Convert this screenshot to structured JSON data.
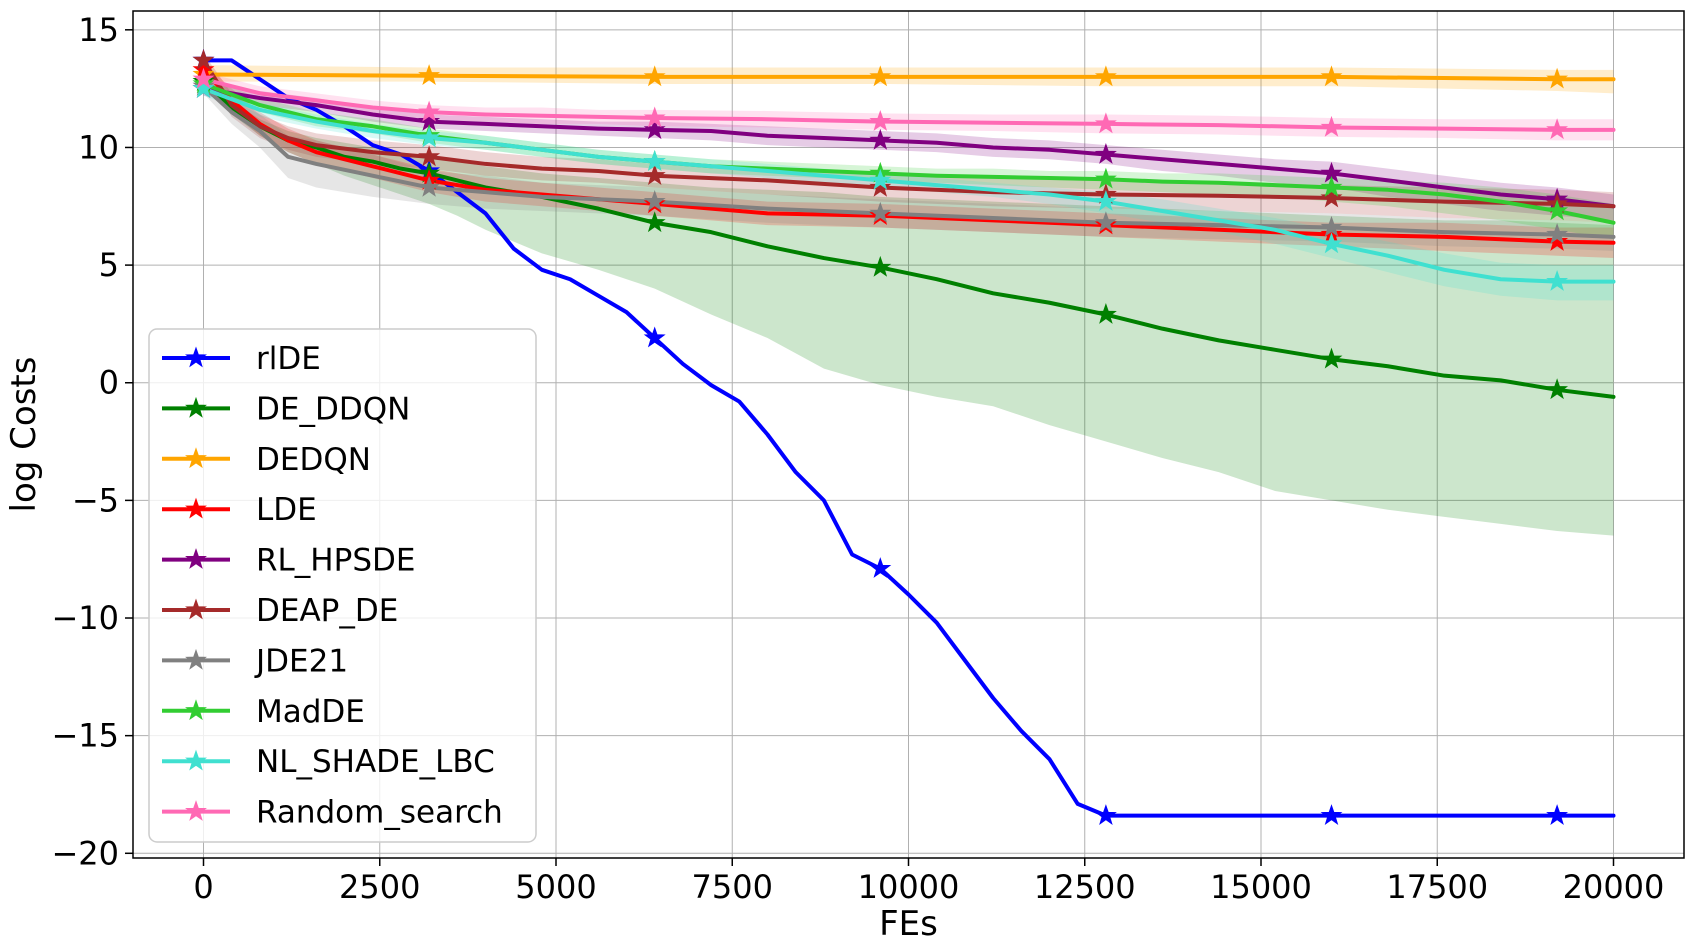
{
  "chart_data": {
    "type": "line",
    "title": "",
    "xlabel": "FEs",
    "ylabel": "log Costs",
    "xlim": [
      -1000,
      21000
    ],
    "ylim": [
      -20.2,
      15.8
    ],
    "x_ticks": [
      0,
      2500,
      5000,
      7500,
      10000,
      12500,
      15000,
      17500,
      20000
    ],
    "x_tick_labels": [
      "0",
      "2500",
      "5000",
      "7500",
      "10000",
      "12500",
      "15000",
      "17500",
      "20000"
    ],
    "y_ticks": [
      15,
      10,
      5,
      0,
      -5,
      -10,
      -15,
      -20
    ],
    "y_tick_labels": [
      "15",
      "10",
      "5",
      "0",
      "−5",
      "−10",
      "−15",
      "−20"
    ],
    "grid": true,
    "legend_position": "lower-left",
    "marker_x": [
      0,
      3200,
      6400,
      9600,
      12800,
      16000,
      19200
    ],
    "series": [
      {
        "name": "rlDE",
        "color": "#0000ff",
        "x": [
          0,
          400,
          800,
          1200,
          1600,
          2000,
          2400,
          2800,
          3200,
          3600,
          4000,
          4400,
          4800,
          5200,
          5600,
          6000,
          6400,
          6800,
          7200,
          7600,
          8000,
          8400,
          8800,
          9200,
          9600,
          10000,
          10400,
          10800,
          11200,
          11600,
          12000,
          12400,
          12800,
          16000,
          19200,
          20000
        ],
        "y": [
          13.7,
          13.7,
          12.9,
          12.1,
          11.6,
          10.9,
          10.1,
          9.7,
          9.0,
          8.1,
          7.2,
          5.7,
          4.8,
          4.4,
          3.7,
          3.0,
          1.9,
          0.8,
          -0.1,
          -0.8,
          -2.2,
          -3.8,
          -5.0,
          -7.3,
          -7.9,
          -9.0,
          -10.2,
          -11.8,
          -13.4,
          -14.8,
          -16.0,
          -17.9,
          -18.4,
          -18.4,
          -18.4,
          -18.4
        ]
      },
      {
        "name": "DE_DDQN",
        "color": "#008000",
        "x": [
          0,
          400,
          800,
          1200,
          1600,
          2000,
          2400,
          2800,
          3200,
          3600,
          4000,
          4800,
          5600,
          6400,
          7200,
          8000,
          8800,
          9600,
          10400,
          11200,
          12000,
          12800,
          13600,
          14400,
          15200,
          16000,
          16800,
          17600,
          18400,
          19200,
          20000
        ],
        "y": [
          12.8,
          11.7,
          10.9,
          10.3,
          10.0,
          9.6,
          9.4,
          9.1,
          8.9,
          8.6,
          8.3,
          7.9,
          7.4,
          6.8,
          6.4,
          5.8,
          5.3,
          4.9,
          4.4,
          3.8,
          3.4,
          2.9,
          2.3,
          1.8,
          1.4,
          1.0,
          0.7,
          0.3,
          0.1,
          -0.3,
          -0.6
        ],
        "lower": [
          12.5,
          11.4,
          10.5,
          9.8,
          9.3,
          8.8,
          8.4,
          8.0,
          7.6,
          7.1,
          6.5,
          5.5,
          4.8,
          4.0,
          2.9,
          1.9,
          0.6,
          -0.1,
          -0.6,
          -1.0,
          -1.8,
          -2.5,
          -3.2,
          -3.8,
          -4.6,
          -5.0,
          -5.4,
          -5.7,
          -6.0,
          -6.3,
          -6.5
        ],
        "upper": [
          13.0,
          12.0,
          11.2,
          10.7,
          10.4,
          10.2,
          10.0,
          9.8,
          9.6,
          9.4,
          9.2,
          8.9,
          8.7,
          8.5,
          8.3,
          8.2,
          8.1,
          7.9,
          7.8,
          7.7,
          7.6,
          7.5,
          7.4,
          7.3,
          7.2,
          7.1,
          7.0,
          6.9,
          6.9,
          6.8,
          6.7
        ]
      },
      {
        "name": "DEDQN",
        "color": "#ffa500",
        "x": [
          0,
          3200,
          6400,
          9600,
          12800,
          16000,
          19200,
          20000
        ],
        "y": [
          13.1,
          13.05,
          13.0,
          13.0,
          13.0,
          13.0,
          12.9,
          12.9
        ],
        "lower": [
          12.8,
          12.8,
          12.7,
          12.7,
          12.6,
          12.6,
          12.4,
          12.3
        ],
        "upper": [
          13.5,
          13.4,
          13.4,
          13.4,
          13.4,
          13.4,
          13.3,
          13.3
        ]
      },
      {
        "name": "LDE",
        "color": "#ff0000",
        "x": [
          0,
          400,
          800,
          1200,
          1600,
          2400,
          3200,
          4000,
          4800,
          5600,
          6400,
          7200,
          8000,
          9600,
          11200,
          12800,
          14400,
          16000,
          17600,
          19200,
          20000
        ],
        "y": [
          13.3,
          12.0,
          11.0,
          10.3,
          9.8,
          9.2,
          8.6,
          8.2,
          8.0,
          7.8,
          7.6,
          7.4,
          7.2,
          7.1,
          6.9,
          6.7,
          6.5,
          6.3,
          6.2,
          6.0,
          5.95
        ],
        "lower": [
          12.9,
          11.5,
          10.5,
          9.8,
          9.3,
          8.7,
          8.1,
          7.7,
          7.5,
          7.3,
          7.1,
          6.9,
          6.7,
          6.6,
          6.4,
          6.2,
          6.0,
          5.8,
          5.6,
          5.4,
          5.3
        ],
        "upper": [
          13.6,
          12.5,
          11.5,
          10.8,
          10.3,
          9.7,
          9.1,
          8.7,
          8.5,
          8.3,
          8.1,
          7.9,
          7.7,
          7.6,
          7.4,
          7.2,
          7.0,
          6.8,
          6.8,
          6.6,
          6.6
        ]
      },
      {
        "name": "RL_HPSDE",
        "color": "#800080",
        "x": [
          0,
          800,
          1600,
          2400,
          3200,
          4000,
          4800,
          5600,
          6400,
          7200,
          8000,
          8800,
          9600,
          10400,
          11200,
          12000,
          12800,
          13600,
          14400,
          15200,
          16000,
          16800,
          17600,
          18400,
          19200,
          20000
        ],
        "y": [
          12.5,
          12.1,
          11.8,
          11.4,
          11.1,
          11.0,
          10.9,
          10.8,
          10.75,
          10.7,
          10.5,
          10.4,
          10.3,
          10.2,
          10.0,
          9.9,
          9.7,
          9.5,
          9.3,
          9.1,
          8.9,
          8.6,
          8.3,
          8.0,
          7.8,
          7.5
        ],
        "lower": [
          12.2,
          11.8,
          11.5,
          11.1,
          10.8,
          10.7,
          10.6,
          10.5,
          10.4,
          10.3,
          10.1,
          10.0,
          9.9,
          9.8,
          9.6,
          9.5,
          9.3,
          9.0,
          8.8,
          8.5,
          8.3,
          7.9,
          7.6,
          7.3,
          7.1,
          6.9
        ],
        "upper": [
          12.8,
          12.4,
          12.1,
          11.7,
          11.4,
          11.3,
          11.2,
          11.1,
          11.1,
          11.0,
          10.9,
          10.8,
          10.7,
          10.6,
          10.4,
          10.3,
          10.1,
          9.9,
          9.7,
          9.5,
          9.4,
          9.1,
          8.8,
          8.5,
          8.3,
          8.0
        ]
      },
      {
        "name": "DEAP_DE",
        "color": "#a52a2a",
        "x": [
          0,
          400,
          800,
          1200,
          1600,
          2400,
          3200,
          4000,
          4800,
          5600,
          6400,
          8000,
          9600,
          11200,
          12800,
          14400,
          16000,
          17600,
          19200,
          20000
        ],
        "y": [
          13.7,
          11.8,
          10.9,
          10.4,
          10.1,
          9.8,
          9.6,
          9.3,
          9.1,
          9.0,
          8.8,
          8.6,
          8.3,
          8.1,
          8.0,
          7.95,
          7.85,
          7.7,
          7.6,
          7.5
        ],
        "lower": [
          13.3,
          11.3,
          10.4,
          9.9,
          9.6,
          9.3,
          9.1,
          8.8,
          8.6,
          8.5,
          8.3,
          8.0,
          7.7,
          7.5,
          7.4,
          7.3,
          7.2,
          7.0,
          6.9,
          6.8
        ],
        "upper": [
          14.0,
          12.3,
          11.4,
          10.9,
          10.6,
          10.3,
          10.1,
          9.8,
          9.6,
          9.5,
          9.3,
          9.1,
          8.9,
          8.7,
          8.6,
          8.5,
          8.4,
          8.3,
          8.2,
          8.1
        ]
      },
      {
        "name": "JDE21",
        "color": "#808080",
        "x": [
          0,
          400,
          800,
          1200,
          1600,
          2400,
          3200,
          4000,
          4800,
          5600,
          6400,
          8000,
          9600,
          11200,
          12800,
          14400,
          16000,
          17600,
          19200,
          20000
        ],
        "y": [
          12.6,
          11.5,
          10.7,
          9.6,
          9.3,
          8.8,
          8.3,
          8.1,
          7.9,
          7.8,
          7.7,
          7.4,
          7.2,
          7.0,
          6.8,
          6.7,
          6.6,
          6.4,
          6.3,
          6.2
        ],
        "lower": [
          12.3,
          11.0,
          10.0,
          8.7,
          8.3,
          7.9,
          7.6,
          7.4,
          7.3,
          7.2,
          7.1,
          6.8,
          6.6,
          6.4,
          6.2,
          6.1,
          6.0,
          5.8,
          5.7,
          5.6
        ],
        "upper": [
          12.9,
          12.0,
          11.4,
          10.5,
          10.3,
          9.7,
          9.0,
          8.8,
          8.5,
          8.4,
          8.3,
          8.0,
          7.8,
          7.6,
          7.4,
          7.3,
          7.2,
          7.0,
          6.9,
          6.8
        ]
      },
      {
        "name": "MadDE",
        "color": "#32cd32",
        "x": [
          0,
          800,
          1600,
          2400,
          3200,
          4000,
          4800,
          5600,
          6400,
          7200,
          8000,
          8800,
          9600,
          10400,
          11200,
          12000,
          12800,
          13600,
          14400,
          15200,
          16000,
          16800,
          17600,
          18400,
          19200,
          20000
        ],
        "y": [
          12.7,
          11.8,
          11.2,
          10.9,
          10.5,
          10.2,
          9.9,
          9.6,
          9.4,
          9.2,
          9.1,
          9.0,
          8.9,
          8.8,
          8.75,
          8.7,
          8.65,
          8.55,
          8.5,
          8.4,
          8.3,
          8.2,
          8.0,
          7.7,
          7.3,
          6.8
        ],
        "lower": [
          12.4,
          11.5,
          10.9,
          10.6,
          10.2,
          9.9,
          9.6,
          9.3,
          9.1,
          8.9,
          8.8,
          8.7,
          8.6,
          8.5,
          8.4,
          8.3,
          8.2,
          8.1,
          8.0,
          7.9,
          7.7,
          7.5,
          7.2,
          6.9,
          6.5,
          6.1
        ],
        "upper": [
          13.0,
          12.1,
          11.5,
          11.2,
          10.8,
          10.5,
          10.2,
          9.9,
          9.7,
          9.5,
          9.4,
          9.3,
          9.2,
          9.1,
          9.1,
          9.0,
          9.0,
          8.9,
          8.9,
          8.8,
          8.7,
          8.6,
          8.5,
          8.3,
          8.0,
          7.6
        ]
      },
      {
        "name": "NL_SHADE_LBC",
        "color": "#40e0d0",
        "x": [
          0,
          800,
          1600,
          2400,
          3200,
          4000,
          4800,
          5600,
          6400,
          7200,
          8000,
          8800,
          9600,
          10400,
          11200,
          12000,
          12800,
          13600,
          14400,
          15200,
          16000,
          16800,
          17600,
          18400,
          19200,
          20000
        ],
        "y": [
          12.5,
          11.6,
          11.1,
          10.7,
          10.4,
          10.2,
          9.9,
          9.6,
          9.4,
          9.2,
          9.0,
          8.8,
          8.6,
          8.4,
          8.2,
          8.0,
          7.7,
          7.3,
          6.9,
          6.5,
          5.9,
          5.4,
          4.8,
          4.4,
          4.3,
          4.3
        ],
        "lower": [
          12.2,
          11.3,
          10.8,
          10.4,
          10.1,
          9.9,
          9.6,
          9.3,
          9.1,
          8.9,
          8.7,
          8.5,
          8.3,
          8.1,
          7.9,
          7.6,
          7.2,
          6.8,
          6.4,
          5.9,
          5.3,
          4.7,
          4.1,
          3.7,
          3.5,
          3.5
        ],
        "upper": [
          12.8,
          11.9,
          11.4,
          11.0,
          10.7,
          10.5,
          10.2,
          9.9,
          9.7,
          9.5,
          9.3,
          9.1,
          8.9,
          8.7,
          8.5,
          8.3,
          8.1,
          7.8,
          7.4,
          7.0,
          6.5,
          6.0,
          5.5,
          5.1,
          5.0,
          5.0
        ]
      },
      {
        "name": "Random_search",
        "color": "#ff69b4",
        "x": [
          0,
          800,
          1600,
          2400,
          3200,
          4000,
          4800,
          5600,
          6400,
          8000,
          9600,
          11200,
          12800,
          14400,
          16000,
          17600,
          19200,
          20000
        ],
        "y": [
          12.9,
          12.3,
          12.0,
          11.7,
          11.5,
          11.4,
          11.35,
          11.3,
          11.25,
          11.2,
          11.1,
          11.05,
          11.0,
          10.95,
          10.85,
          10.8,
          10.75,
          10.75
        ],
        "lower": [
          12.6,
          12.0,
          11.7,
          11.4,
          11.2,
          11.1,
          11.0,
          11.0,
          10.9,
          10.85,
          10.75,
          10.7,
          10.6,
          10.55,
          10.45,
          10.4,
          10.3,
          10.3
        ],
        "upper": [
          13.2,
          12.6,
          12.3,
          12.0,
          11.8,
          11.7,
          11.7,
          11.6,
          11.6,
          11.55,
          11.45,
          11.4,
          11.4,
          11.35,
          11.25,
          11.2,
          11.2,
          11.2
        ]
      }
    ]
  }
}
